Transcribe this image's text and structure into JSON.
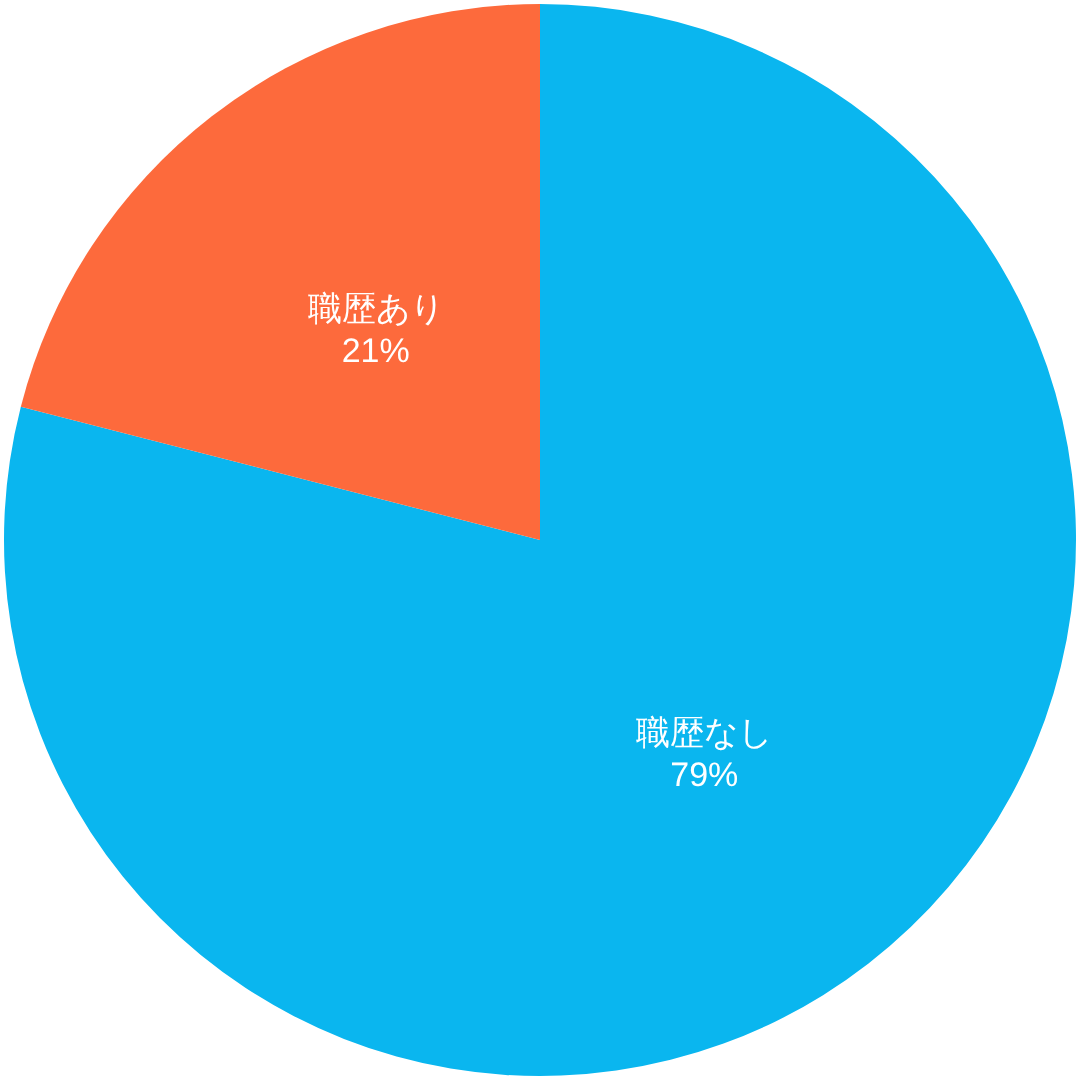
{
  "chart_data": {
    "type": "pie",
    "categories": [
      "職歴なし",
      "職歴あり"
    ],
    "values": [
      79,
      21
    ],
    "colors": [
      "#0ab6ef",
      "#fd6a3c"
    ],
    "value_labels": [
      "79%",
      "21%"
    ]
  }
}
